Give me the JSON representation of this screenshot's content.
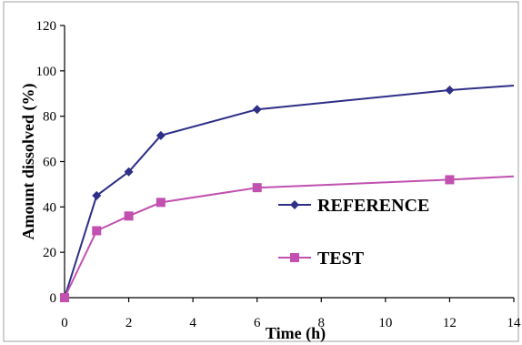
{
  "chart_data": {
    "type": "line",
    "title": "",
    "xlabel": "Time (h)",
    "ylabel": "Amount dissolved (%)",
    "xlim": [
      0,
      14
    ],
    "ylim": [
      0,
      120
    ],
    "x_ticks": [
      "0",
      "2",
      "4",
      "6",
      "8",
      "10",
      "12",
      "14"
    ],
    "y_ticks": [
      "0",
      "20",
      "40",
      "60",
      "80",
      "100",
      "120"
    ],
    "grid": false,
    "legend_position": "right",
    "series": [
      {
        "name": "REFERENCE",
        "color": "#2e2f86",
        "marker": "diamond",
        "x": [
          0,
          1,
          2,
          3,
          6,
          12,
          14
        ],
        "y": [
          0,
          45,
          55.5,
          71.5,
          83,
          91.5,
          93.5
        ]
      },
      {
        "name": "TEST",
        "color": "#c150b0",
        "marker": "square",
        "x": [
          0,
          1,
          2,
          3,
          6,
          12,
          14
        ],
        "y": [
          0,
          29.5,
          36,
          42,
          48.5,
          52,
          53.5
        ]
      }
    ]
  }
}
